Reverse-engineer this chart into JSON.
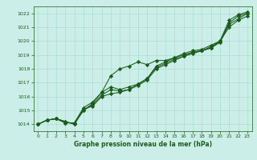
{
  "xlabel": "Graphe pression niveau de la mer (hPa)",
  "ylim": [
    1013.5,
    1022.5
  ],
  "xlim": [
    -0.5,
    23.5
  ],
  "yticks": [
    1014,
    1015,
    1016,
    1017,
    1018,
    1019,
    1020,
    1021,
    1022
  ],
  "xticks": [
    0,
    1,
    2,
    3,
    4,
    5,
    6,
    7,
    8,
    9,
    10,
    11,
    12,
    13,
    14,
    15,
    16,
    17,
    18,
    19,
    20,
    21,
    22,
    23
  ],
  "bg_color": "#cceee8",
  "line_color": "#1a5c1a",
  "grid_color": "#aaddcc",
  "lines": [
    [
      1014.0,
      1014.3,
      1014.4,
      1014.2,
      1014.0,
      1015.0,
      1015.5,
      1016.3,
      1017.5,
      1018.0,
      1018.2,
      1018.5,
      1018.3,
      1018.6,
      1018.6,
      1018.8,
      1019.0,
      1019.2,
      1019.3,
      1019.5,
      1020.0,
      1021.0,
      1021.5,
      1021.8
    ],
    [
      1014.0,
      1014.3,
      1014.4,
      1014.2,
      1014.0,
      1015.1,
      1015.3,
      1016.0,
      1016.2,
      1016.3,
      1016.5,
      1016.8,
      1017.2,
      1018.0,
      1018.3,
      1018.6,
      1018.9,
      1019.1,
      1019.3,
      1019.5,
      1019.9,
      1021.2,
      1021.6,
      1022.0
    ],
    [
      1014.0,
      1014.3,
      1014.4,
      1014.1,
      1014.1,
      1015.0,
      1015.4,
      1016.1,
      1016.5,
      1016.4,
      1016.5,
      1016.9,
      1017.3,
      1018.1,
      1018.4,
      1018.7,
      1018.9,
      1019.2,
      1019.3,
      1019.6,
      1020.0,
      1021.3,
      1021.8,
      1022.0
    ],
    [
      1014.0,
      1014.3,
      1014.4,
      1014.1,
      1014.1,
      1015.2,
      1015.6,
      1016.3,
      1016.7,
      1016.5,
      1016.7,
      1016.9,
      1017.3,
      1018.2,
      1018.5,
      1018.8,
      1019.1,
      1019.3,
      1019.4,
      1019.7,
      1020.0,
      1021.5,
      1021.9,
      1022.1
    ]
  ],
  "marker": "D",
  "markersize": 2.2,
  "linewidth": 0.75
}
